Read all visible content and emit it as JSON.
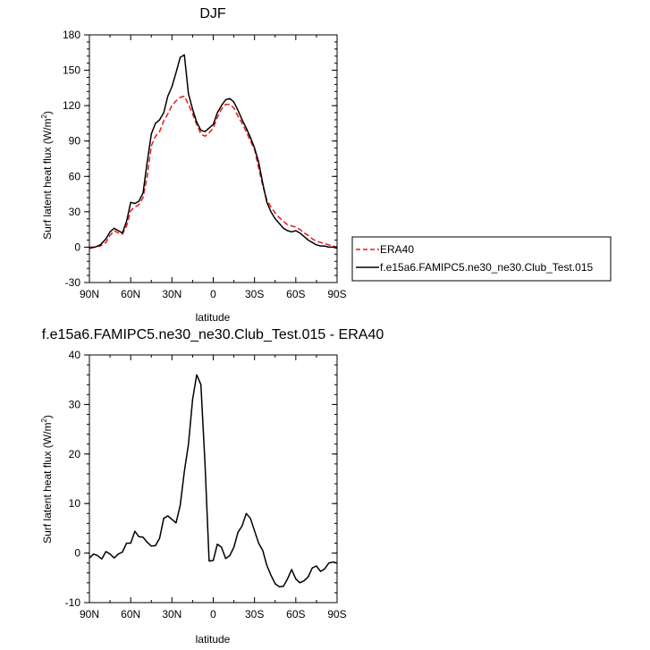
{
  "chart_data": [
    {
      "type": "line",
      "title": "DJF",
      "xlabel": "latitude",
      "ylabel_main": "Surf latent heat flux (W/m",
      "ylabel_sup": "2",
      "ylabel_tail": ")",
      "xlim": [
        90,
        -90
      ],
      "ylim": [
        -30,
        180
      ],
      "xticks": [
        90,
        60,
        30,
        0,
        -30,
        -60,
        -90
      ],
      "xtick_labels": [
        "90N",
        "60N",
        "30N",
        "0",
        "30S",
        "60S",
        "90S"
      ],
      "yticks": [
        -30,
        0,
        30,
        60,
        90,
        120,
        150,
        180
      ],
      "ytick_labels": [
        "-30",
        "0",
        "30",
        "60",
        "90",
        "120",
        "150",
        "180"
      ],
      "legend_position": "right",
      "series": [
        {
          "name": "ERA40",
          "color": "#e31a1c",
          "dash": "dashed",
          "x": [
            90,
            86,
            82,
            78,
            75,
            72,
            69,
            66,
            63,
            60,
            57,
            54,
            51,
            48,
            45,
            42,
            39,
            36,
            33,
            30,
            27,
            24,
            21,
            18,
            15,
            12,
            9,
            6,
            3,
            0,
            -3,
            -6,
            -9,
            -12,
            -15,
            -18,
            -21,
            -24,
            -27,
            -30,
            -33,
            -36,
            -39,
            -42,
            -45,
            -48,
            -51,
            -54,
            -57,
            -60,
            -63,
            -66,
            -69,
            -72,
            -75,
            -78,
            -81,
            -84,
            -87,
            -90
          ],
          "y": [
            0,
            0,
            1,
            4,
            10,
            14,
            12,
            11,
            18,
            31,
            34,
            36,
            42,
            60,
            86,
            94,
            98,
            107,
            113,
            120,
            124,
            127,
            128,
            121,
            113,
            104,
            96,
            94,
            97,
            101,
            110,
            117,
            121,
            121,
            118,
            111,
            105,
            98,
            90,
            83,
            67,
            52,
            40,
            34,
            29,
            25,
            22,
            19,
            18,
            17,
            15,
            12,
            10,
            7,
            5,
            4,
            3,
            2,
            1,
            0
          ]
        },
        {
          "name": "f.e15a6.FAMIPC5.ne30_ne30.Club_Test.015",
          "color": "#000000",
          "dash": "solid",
          "x": [
            90,
            86,
            82,
            78,
            75,
            72,
            69,
            66,
            63,
            60,
            57,
            54,
            51,
            48,
            45,
            42,
            39,
            36,
            33,
            30,
            27,
            24,
            21,
            18,
            15,
            12,
            9,
            6,
            3,
            0,
            -3,
            -6,
            -9,
            -12,
            -15,
            -18,
            -21,
            -24,
            -27,
            -30,
            -33,
            -36,
            -39,
            -42,
            -45,
            -48,
            -51,
            -54,
            -57,
            -60,
            -63,
            -66,
            -69,
            -72,
            -75,
            -78,
            -81,
            -84,
            -87,
            -90
          ],
          "y": [
            -1,
            0,
            2,
            7,
            13,
            16,
            14,
            12,
            22,
            38,
            37,
            39,
            46,
            72,
            96,
            105,
            108,
            114,
            128,
            136,
            148,
            161,
            163,
            130,
            117,
            106,
            99,
            98,
            101,
            104,
            114,
            120,
            125,
            126,
            123,
            116,
            108,
            101,
            93,
            84,
            72,
            54,
            38,
            30,
            24,
            20,
            16,
            14,
            13,
            14,
            12,
            9,
            6,
            4,
            2,
            1,
            1,
            0,
            0,
            -1
          ]
        }
      ]
    },
    {
      "type": "line",
      "title": "f.e15a6.FAMIPC5.ne30_ne30.Club_Test.015 - ERA40",
      "xlabel": "latitude",
      "ylabel_main": "Surf latent heat flux (W/m",
      "ylabel_sup": "2",
      "ylabel_tail": ")",
      "xlim": [
        90,
        -90
      ],
      "ylim": [
        -10,
        40
      ],
      "xticks": [
        90,
        60,
        30,
        0,
        -30,
        -60,
        -90
      ],
      "xtick_labels": [
        "90N",
        "60N",
        "30N",
        "0",
        "30S",
        "60S",
        "90S"
      ],
      "yticks": [
        -10,
        0,
        10,
        20,
        30,
        40
      ],
      "ytick_labels": [
        "-10",
        "0",
        "10",
        "20",
        "30",
        "40"
      ],
      "series": [
        {
          "color": "#000000",
          "dash": "solid",
          "x": [
            90,
            87,
            84,
            81,
            78,
            75,
            72,
            69,
            66,
            63,
            60,
            57,
            54,
            51,
            48,
            45,
            42,
            39,
            36,
            33,
            30,
            27,
            24,
            21,
            18,
            15,
            12,
            9,
            6,
            3,
            0,
            -3,
            -6,
            -9,
            -12,
            -15,
            -18,
            -21,
            -24,
            -27,
            -30,
            -33,
            -36,
            -39,
            -42,
            -45,
            -48,
            -51,
            -54,
            -57,
            -60,
            -63,
            -66,
            -69,
            -72,
            -75,
            -78,
            -81,
            -84,
            -87,
            -90
          ],
          "y": [
            -1,
            -0.2,
            -0.5,
            -1.2,
            0.3,
            -0.2,
            -1,
            -0.2,
            0.2,
            2,
            2,
            4.4,
            3.3,
            3.2,
            2.2,
            1.4,
            1.5,
            3,
            7,
            7.5,
            6.8,
            6.1,
            9.7,
            16.5,
            22,
            31,
            36,
            34,
            18,
            -1.6,
            -1.5,
            1.8,
            1.2,
            -1.1,
            -0.5,
            1.2,
            4.2,
            5.5,
            8,
            7,
            4.5,
            2,
            0.5,
            -2.5,
            -4.5,
            -6.2,
            -6.8,
            -6.7,
            -5.2,
            -3.3,
            -5.2,
            -6,
            -5.6,
            -4.8,
            -3,
            -2.6,
            -3.7,
            -3.2,
            -2,
            -1.8,
            -2
          ]
        }
      ]
    }
  ]
}
